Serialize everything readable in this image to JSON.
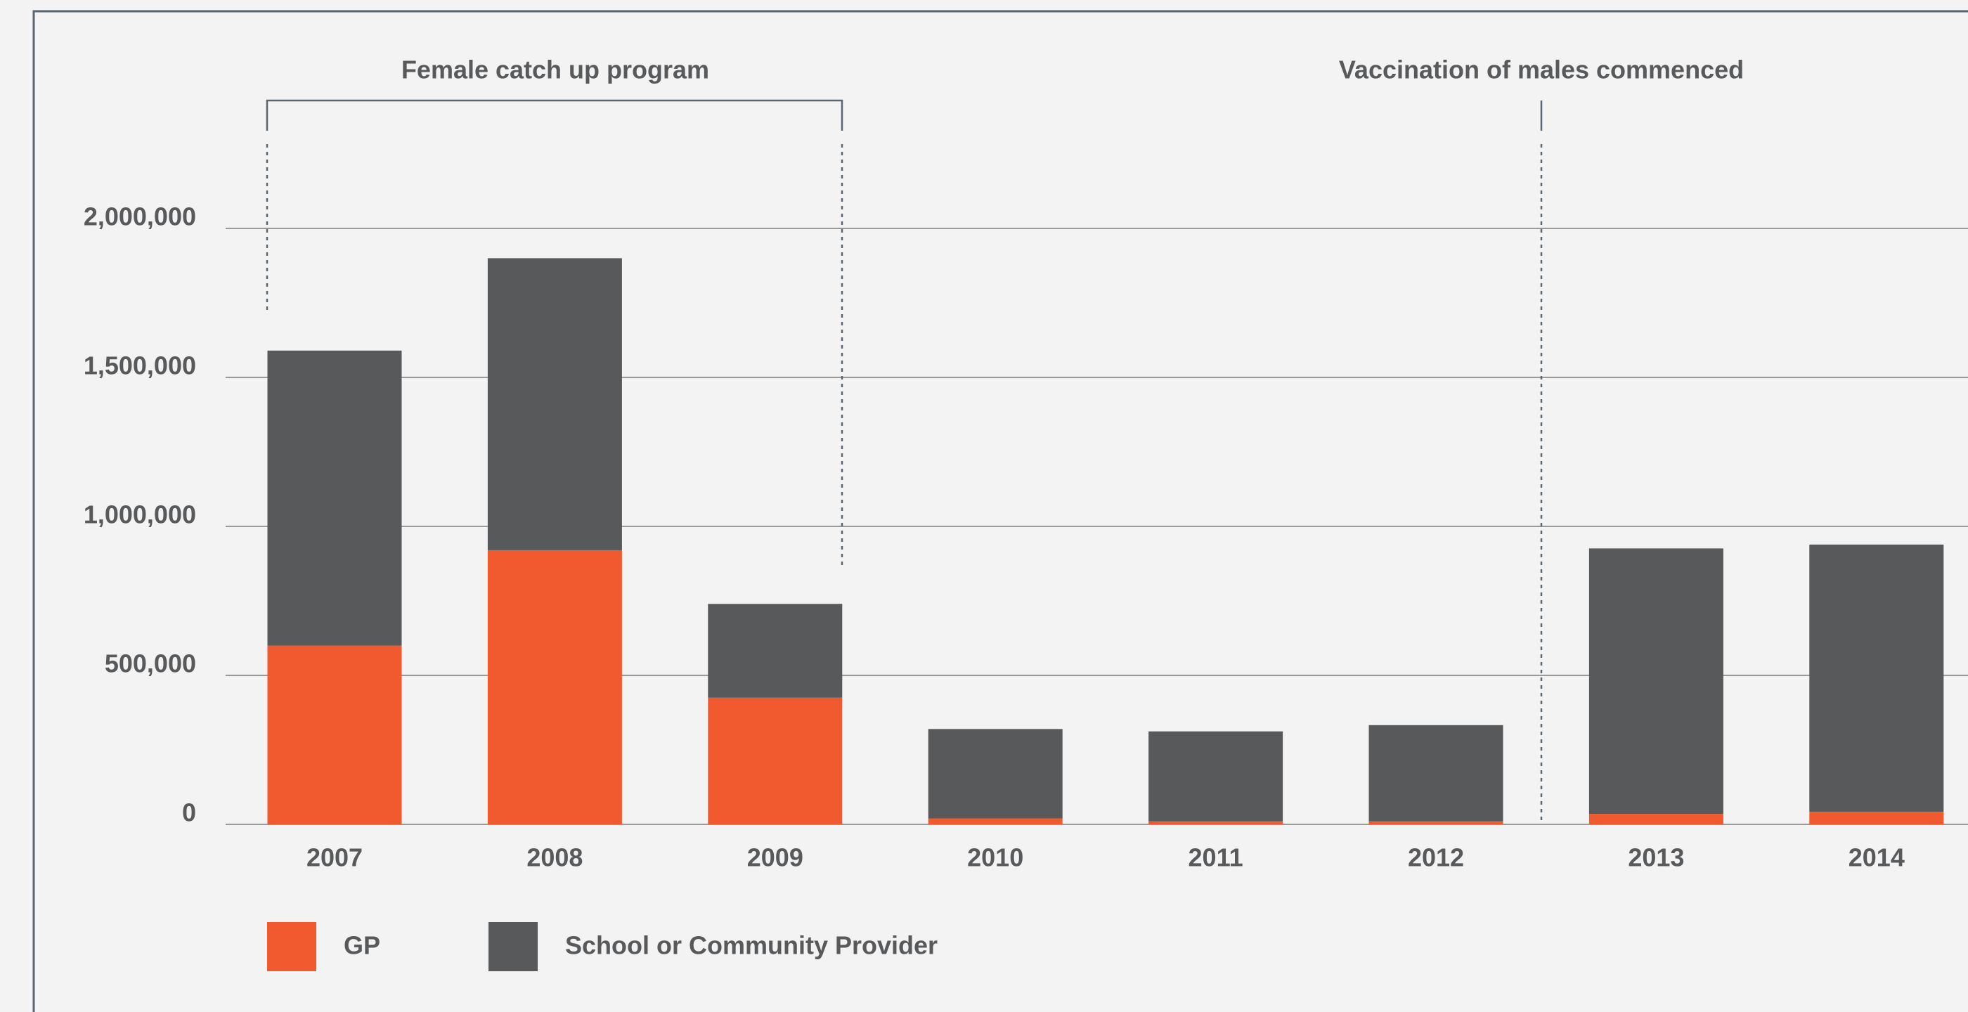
{
  "chart_data": {
    "type": "stacked_bar",
    "categories": [
      "2007",
      "2008",
      "2009",
      "2010",
      "2011",
      "2012",
      "2013",
      "2014"
    ],
    "series": [
      {
        "name": "GP",
        "color": "#f15a2f",
        "values": [
          600000,
          920000,
          425000,
          20000,
          10000,
          10000,
          35000,
          42000
        ]
      },
      {
        "name": "School or Community Provider",
        "color": "#58595b",
        "values": [
          990000,
          980000,
          315000,
          300000,
          302000,
          323000,
          891000,
          897000
        ]
      }
    ],
    "ylim": [
      0,
      2000000
    ],
    "yticks": [
      0,
      {
        "value": 500000,
        "label": "500,000"
      },
      {
        "value": 1000000,
        "label": "1,000,000"
      },
      {
        "value": 1500000,
        "label": "1,500,000"
      },
      {
        "value": 2000000,
        "label": "2,000,000"
      }
    ],
    "grid": true,
    "annotations": [
      "Female catch up program",
      "Vaccination of males commenced"
    ]
  }
}
